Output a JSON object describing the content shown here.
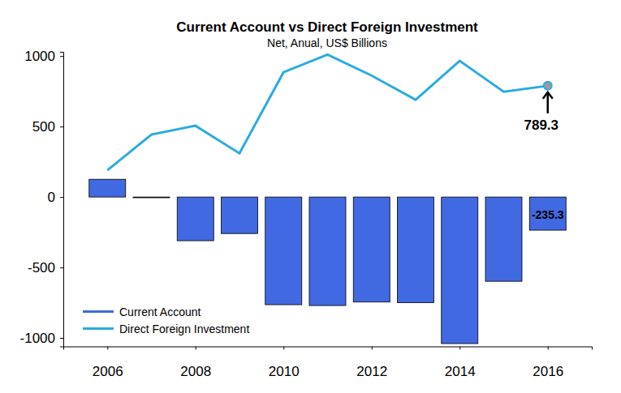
{
  "chart_data": {
    "type": "bar",
    "title": "Current Account vs Direct Foreign Investment",
    "subtitle": "Net, Anual, US$ Billions",
    "x": [
      2006,
      2007,
      2008,
      2009,
      2010,
      2011,
      2012,
      2013,
      2014,
      2015,
      2016
    ],
    "xlim": [
      2005,
      2017
    ],
    "xticks": [
      2006,
      2008,
      2010,
      2012,
      2014,
      2016
    ],
    "ylim": [
      -1060,
      1030
    ],
    "yticks": [
      -1000,
      -500,
      0,
      500,
      1000
    ],
    "grid": false,
    "legend": "bottomleft",
    "series": [
      {
        "name": "Current Account",
        "type": "bar",
        "color": "#4169E1",
        "values": [
          126,
          -5,
          -310,
          -259,
          -764,
          -770,
          -745,
          -750,
          -1040,
          -598,
          -235.3
        ]
      },
      {
        "name": "Direct Foreign Investment",
        "type": "line",
        "color": "#29ABE2",
        "values": [
          190,
          443,
          506,
          310,
          885,
          1011,
          862,
          690,
          966,
          747,
          789.3
        ]
      }
    ],
    "annotations": [
      {
        "x": 2016,
        "y": 789.3,
        "text": "789.3"
      },
      {
        "x": 2016,
        "y": -235.3,
        "text": "-235.3"
      }
    ]
  }
}
